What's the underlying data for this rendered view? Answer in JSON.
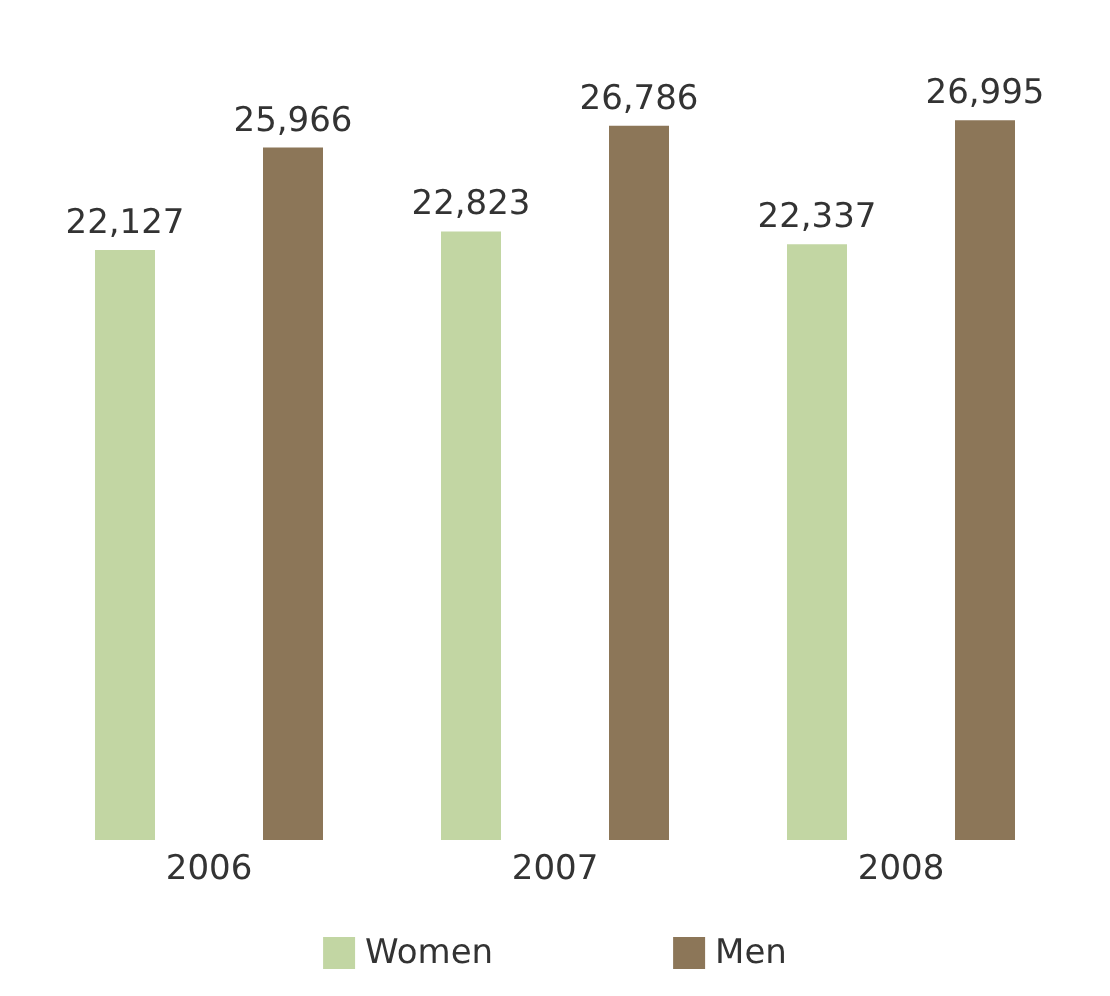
{
  "chart_data": {
    "type": "bar",
    "categories": [
      "2006",
      "2007",
      "2008"
    ],
    "series": [
      {
        "name": "Women",
        "color": "#c2d6a3",
        "values": [
          22127,
          22823,
          22337
        ],
        "value_labels": [
          "22,127",
          "22,823",
          "22,337"
        ]
      },
      {
        "name": "Men",
        "color": "#8c7658",
        "values": [
          25966,
          26786,
          26995
        ],
        "value_labels": [
          "25,966",
          "26,786",
          "26,995"
        ]
      }
    ],
    "legend": "bottom"
  }
}
